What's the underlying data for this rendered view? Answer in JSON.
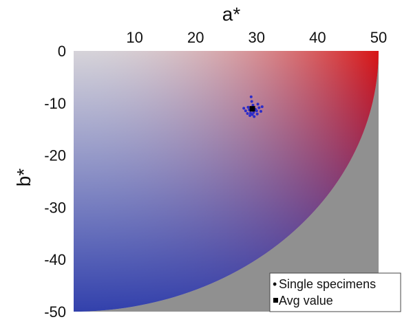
{
  "colors": {
    "outside_region": "#909090",
    "point_series": "#2c2cc8",
    "avg_marker": "#000000",
    "legend_border": "#444444"
  },
  "chart_data": {
    "type": "scatter",
    "xlabel": "a*",
    "ylabel": "b*",
    "xlim": [
      0,
      50
    ],
    "ylim": [
      -50,
      0
    ],
    "xticks": [
      10,
      20,
      30,
      40,
      50
    ],
    "yticks": [
      0,
      -10,
      -20,
      -30,
      -40,
      -50
    ],
    "x_axis_position": "top",
    "background": "CIELAB a*-b* color field (white/grey at a*=0,b*=0; red toward +a*; blue toward -b*; grey outside gamut boundary)",
    "legend_placement": "bottom-right",
    "series": [
      {
        "name": "Single specimens",
        "marker": "dot",
        "points": [
          [
            28.2,
            -11.5
          ],
          [
            28.6,
            -10.8
          ],
          [
            29.0,
            -11.9
          ],
          [
            29.4,
            -10.4
          ],
          [
            29.8,
            -11.2
          ],
          [
            30.1,
            -12.1
          ],
          [
            30.4,
            -10.9
          ],
          [
            28.9,
            -12.4
          ],
          [
            29.2,
            -9.7
          ],
          [
            30.7,
            -11.6
          ],
          [
            28.5,
            -12.0
          ],
          [
            29.6,
            -12.6
          ],
          [
            30.2,
            -10.2
          ],
          [
            27.9,
            -11.0
          ],
          [
            29.1,
            -8.8
          ],
          [
            30.9,
            -10.7
          ],
          [
            29.5,
            -11.8
          ],
          [
            28.8,
            -11.3
          ],
          [
            30.0,
            -11.5
          ],
          [
            29.3,
            -12.2
          ]
        ]
      },
      {
        "name": "Avg value",
        "marker": "square",
        "points": [
          [
            29.3,
            -11.1
          ]
        ]
      }
    ]
  }
}
